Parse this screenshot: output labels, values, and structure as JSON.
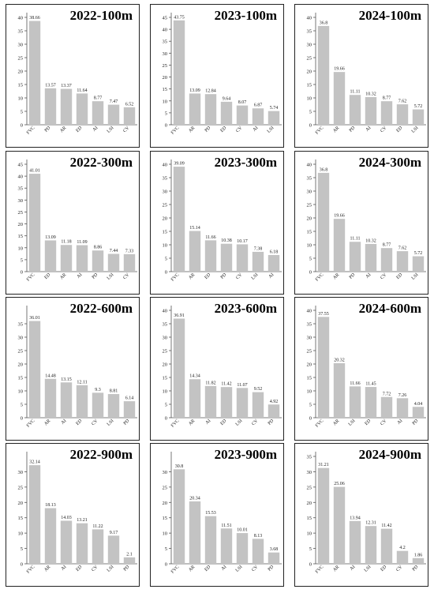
{
  "chart_data": [
    {
      "type": "bar",
      "title": "2022-100m",
      "categories": [
        "FVC",
        "PD",
        "AR",
        "ED",
        "AI",
        "LSI",
        "CV"
      ],
      "values": [
        38.66,
        13.57,
        13.37,
        11.64,
        8.77,
        7.47,
        6.52
      ],
      "ylim": [
        0,
        40
      ],
      "yticks": [
        0,
        5,
        10,
        15,
        20,
        25,
        30,
        35,
        40
      ],
      "grid": false
    },
    {
      "type": "bar",
      "title": "2023-100m",
      "categories": [
        "FVC",
        "AR",
        "PD",
        "ED",
        "CV",
        "AI",
        "LSI"
      ],
      "values": [
        43.75,
        13.09,
        12.84,
        9.64,
        8.07,
        6.87,
        5.74
      ],
      "ylim": [
        0,
        45
      ],
      "yticks": [
        0,
        5,
        10,
        15,
        20,
        25,
        30,
        35,
        40,
        45
      ],
      "grid": false
    },
    {
      "type": "bar",
      "title": "2024-100m",
      "categories": [
        "FVC",
        "AR",
        "PD",
        "AI",
        "CV",
        "ED",
        "LSI"
      ],
      "values": [
        36.8,
        19.66,
        11.11,
        10.32,
        8.77,
        7.62,
        5.72
      ],
      "ylim": [
        0,
        40
      ],
      "yticks": [
        0,
        5,
        10,
        15,
        20,
        25,
        30,
        35,
        40
      ],
      "grid": false
    },
    {
      "type": "bar",
      "title": "2022-300m",
      "categories": [
        "FVC",
        "ED",
        "AR",
        "AI",
        "PD",
        "LSI",
        "CV"
      ],
      "values": [
        41.01,
        13.09,
        11.18,
        11.09,
        8.86,
        7.44,
        7.33
      ],
      "ylim": [
        0,
        45
      ],
      "yticks": [
        0,
        5,
        10,
        15,
        20,
        25,
        30,
        35,
        40,
        45
      ],
      "grid": false
    },
    {
      "type": "bar",
      "title": "2023-300m",
      "categories": [
        "FVC",
        "AR",
        "ED",
        "PD",
        "CV",
        "LSI",
        "AI"
      ],
      "values": [
        39.09,
        15.14,
        11.66,
        10.38,
        10.17,
        7.38,
        6.18
      ],
      "ylim": [
        0,
        40
      ],
      "yticks": [
        0,
        5,
        10,
        15,
        20,
        25,
        30,
        35,
        40
      ],
      "grid": false
    },
    {
      "type": "bar",
      "title": "2024-300m",
      "categories": [
        "FVC",
        "AR",
        "PD",
        "AI",
        "CV",
        "ED",
        "LSI"
      ],
      "values": [
        36.8,
        19.66,
        11.11,
        10.32,
        8.77,
        7.62,
        5.72
      ],
      "ylim": [
        0,
        40
      ],
      "yticks": [
        0,
        5,
        10,
        15,
        20,
        25,
        30,
        35,
        40
      ],
      "grid": false
    },
    {
      "type": "bar",
      "title": "2022-600m",
      "categories": [
        "FVC",
        "AR",
        "AI",
        "ED",
        "CV",
        "LSI",
        "PD"
      ],
      "values": [
        36.01,
        14.48,
        13.15,
        12.11,
        9.3,
        8.81,
        6.14
      ],
      "ylim": [
        0,
        40
      ],
      "yticks": [
        0,
        5,
        10,
        15,
        20,
        25,
        30,
        35
      ],
      "grid": false
    },
    {
      "type": "bar",
      "title": "2023-600m",
      "categories": [
        "FVC",
        "AR",
        "AI",
        "ED",
        "LSI",
        "CV",
        "PD"
      ],
      "values": [
        36.91,
        14.34,
        11.82,
        11.42,
        11.07,
        9.52,
        4.92
      ],
      "ylim": [
        0,
        40
      ],
      "yticks": [
        0,
        5,
        10,
        15,
        20,
        25,
        30,
        35,
        40
      ],
      "grid": false
    },
    {
      "type": "bar",
      "title": "2024-600m",
      "categories": [
        "FVC",
        "AR",
        "LSI",
        "ED",
        "CV",
        "AI",
        "PD"
      ],
      "values": [
        37.55,
        20.32,
        11.66,
        11.45,
        7.72,
        7.26,
        4.04
      ],
      "ylim": [
        0,
        40
      ],
      "yticks": [
        0,
        5,
        10,
        15,
        20,
        25,
        30,
        35,
        40
      ],
      "grid": false
    },
    {
      "type": "bar",
      "title": "2022-900m",
      "categories": [
        "FVC",
        "AR",
        "AI",
        "ED",
        "CV",
        "LSI",
        "PD"
      ],
      "values": [
        32.14,
        18.13,
        14.03,
        13.21,
        11.22,
        9.17,
        2.1
      ],
      "ylim": [
        0,
        35
      ],
      "yticks": [
        0,
        5,
        10,
        15,
        20,
        25,
        30
      ],
      "grid": false
    },
    {
      "type": "bar",
      "title": "2023-900m",
      "categories": [
        "FVC",
        "AR",
        "ED",
        "AI",
        "LSI",
        "CV",
        "PD"
      ],
      "values": [
        30.8,
        20.34,
        15.53,
        11.51,
        10.01,
        8.13,
        3.68
      ],
      "ylim": [
        0,
        35
      ],
      "yticks": [
        0,
        5,
        10,
        15,
        20,
        25,
        30
      ],
      "grid": false
    },
    {
      "type": "bar",
      "title": "2024-900m",
      "categories": [
        "FVC",
        "AR",
        "AI",
        "LSI",
        "ED",
        "CV",
        "PD"
      ],
      "values": [
        31.21,
        25.06,
        13.94,
        12.31,
        11.42,
        4.2,
        1.86
      ],
      "ylim": [
        0,
        35
      ],
      "yticks": [
        0,
        5,
        10,
        15,
        20,
        25,
        30,
        35
      ],
      "grid": false
    }
  ],
  "colors": {
    "bar": "#c3c3c3",
    "axis": "#555555",
    "text": "#222222",
    "border": "#222222"
  }
}
